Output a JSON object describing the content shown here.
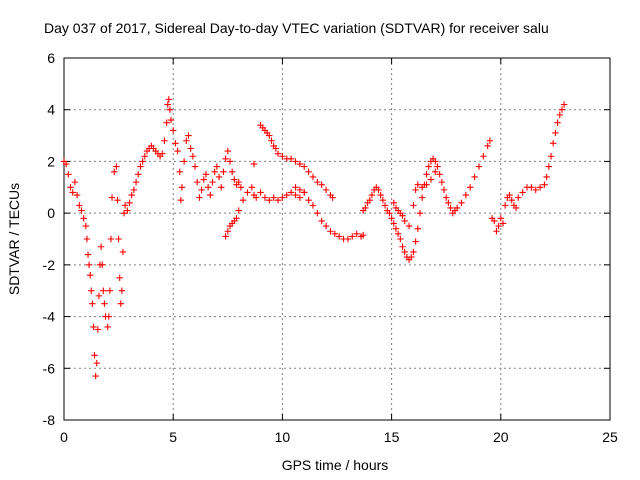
{
  "chart_data": {
    "type": "scatter",
    "title": "Day 037 of 2017, Sidereal Day-to-day VTEC variation (SDTVAR) for receiver salu",
    "xlabel": "GPS time / hours",
    "ylabel": "SDTVAR / TECUs",
    "xlim": [
      0,
      25
    ],
    "ylim": [
      -8,
      6
    ],
    "xticks": [
      0,
      5,
      10,
      15,
      20,
      25
    ],
    "yticks": [
      -8,
      -6,
      -4,
      -2,
      0,
      2,
      4,
      6
    ],
    "grid": true,
    "marker": "plus",
    "color": "#ff0000",
    "series": [
      {
        "name": "SDTVAR",
        "points": [
          [
            0.0,
            2.0
          ],
          [
            0.1,
            1.9
          ],
          [
            0.2,
            1.5
          ],
          [
            0.3,
            1.0
          ],
          [
            0.4,
            0.8
          ],
          [
            0.5,
            1.2
          ],
          [
            0.6,
            0.7
          ],
          [
            0.7,
            0.3
          ],
          [
            0.8,
            0.1
          ],
          [
            0.9,
            -0.2
          ],
          [
            1.0,
            -0.5
          ],
          [
            1.05,
            -1.0
          ],
          [
            1.1,
            -1.6
          ],
          [
            1.15,
            -2.0
          ],
          [
            1.2,
            -2.4
          ],
          [
            1.25,
            -3.0
          ],
          [
            1.3,
            -3.5
          ],
          [
            1.35,
            -4.4
          ],
          [
            1.4,
            -5.5
          ],
          [
            1.45,
            -6.3
          ],
          [
            1.5,
            -5.8
          ],
          [
            1.55,
            -4.5
          ],
          [
            1.6,
            -3.2
          ],
          [
            1.65,
            -2.0
          ],
          [
            1.7,
            -1.3
          ],
          [
            1.75,
            -2.0
          ],
          [
            1.8,
            -3.0
          ],
          [
            1.85,
            -3.5
          ],
          [
            1.9,
            -4.0
          ],
          [
            2.0,
            -4.4
          ],
          [
            2.05,
            -4.0
          ],
          [
            2.1,
            -3.0
          ],
          [
            2.15,
            -1.0
          ],
          [
            2.2,
            0.6
          ],
          [
            2.3,
            1.6
          ],
          [
            2.4,
            1.8
          ],
          [
            2.45,
            0.5
          ],
          [
            2.5,
            -1.0
          ],
          [
            2.55,
            -2.5
          ],
          [
            2.6,
            -3.5
          ],
          [
            2.65,
            -3.0
          ],
          [
            2.7,
            -1.5
          ],
          [
            2.75,
            0.0
          ],
          [
            2.8,
            0.3
          ],
          [
            2.9,
            0.1
          ],
          [
            3.0,
            0.4
          ],
          [
            3.1,
            0.7
          ],
          [
            3.2,
            0.9
          ],
          [
            3.3,
            1.2
          ],
          [
            3.4,
            1.5
          ],
          [
            3.5,
            1.8
          ],
          [
            3.6,
            2.0
          ],
          [
            3.7,
            2.2
          ],
          [
            3.8,
            2.4
          ],
          [
            3.9,
            2.5
          ],
          [
            4.0,
            2.6
          ],
          [
            4.1,
            2.5
          ],
          [
            4.2,
            2.4
          ],
          [
            4.3,
            2.3
          ],
          [
            4.4,
            2.2
          ],
          [
            4.5,
            2.3
          ],
          [
            4.6,
            2.8
          ],
          [
            4.7,
            3.5
          ],
          [
            4.75,
            4.2
          ],
          [
            4.8,
            4.4
          ],
          [
            4.85,
            4.0
          ],
          [
            4.9,
            3.6
          ],
          [
            5.0,
            3.2
          ],
          [
            5.1,
            2.7
          ],
          [
            5.2,
            2.4
          ],
          [
            5.3,
            1.6
          ],
          [
            5.35,
            0.5
          ],
          [
            5.4,
            1.0
          ],
          [
            5.5,
            2.0
          ],
          [
            5.6,
            2.8
          ],
          [
            5.7,
            3.0
          ],
          [
            5.8,
            2.5
          ],
          [
            5.9,
            2.2
          ],
          [
            6.0,
            1.8
          ],
          [
            6.1,
            1.2
          ],
          [
            6.2,
            0.6
          ],
          [
            6.3,
            0.9
          ],
          [
            6.4,
            1.3
          ],
          [
            6.5,
            1.5
          ],
          [
            6.6,
            1.0
          ],
          [
            6.7,
            0.7
          ],
          [
            6.8,
            1.2
          ],
          [
            6.9,
            1.6
          ],
          [
            7.0,
            1.8
          ],
          [
            7.1,
            1.4
          ],
          [
            7.2,
            1.0
          ],
          [
            7.3,
            1.6
          ],
          [
            7.4,
            2.1
          ],
          [
            7.5,
            2.4
          ],
          [
            7.6,
            2.0
          ],
          [
            7.7,
            1.6
          ],
          [
            7.8,
            1.3
          ],
          [
            7.9,
            1.1
          ],
          [
            8.0,
            1.2
          ],
          [
            8.1,
            1.0
          ],
          [
            7.4,
            -0.9
          ],
          [
            7.5,
            -0.7
          ],
          [
            7.6,
            -0.5
          ],
          [
            7.7,
            -0.4
          ],
          [
            7.8,
            -0.3
          ],
          [
            7.9,
            -0.2
          ],
          [
            8.0,
            0.1
          ],
          [
            8.2,
            0.5
          ],
          [
            8.4,
            0.8
          ],
          [
            8.6,
            1.0
          ],
          [
            8.7,
            0.7
          ],
          [
            8.8,
            0.6
          ],
          [
            9.0,
            0.8
          ],
          [
            9.2,
            0.6
          ],
          [
            9.4,
            0.5
          ],
          [
            9.6,
            0.6
          ],
          [
            9.8,
            0.5
          ],
          [
            10.0,
            0.6
          ],
          [
            10.2,
            0.7
          ],
          [
            10.4,
            0.8
          ],
          [
            10.6,
            0.7
          ],
          [
            10.8,
            0.6
          ],
          [
            11.0,
            0.8
          ],
          [
            11.2,
            0.5
          ],
          [
            11.4,
            0.3
          ],
          [
            11.6,
            0.0
          ],
          [
            11.8,
            -0.3
          ],
          [
            12.0,
            -0.5
          ],
          [
            12.2,
            -0.7
          ],
          [
            12.4,
            -0.8
          ],
          [
            12.6,
            -0.9
          ],
          [
            12.8,
            -1.0
          ],
          [
            13.0,
            -1.0
          ],
          [
            13.2,
            -0.9
          ],
          [
            13.4,
            -0.8
          ],
          [
            13.6,
            -0.9
          ],
          [
            13.7,
            -0.85
          ],
          [
            8.7,
            1.9
          ],
          [
            9.0,
            3.4
          ],
          [
            9.1,
            3.3
          ],
          [
            9.2,
            3.2
          ],
          [
            9.3,
            3.1
          ],
          [
            9.4,
            3.0
          ],
          [
            9.5,
            2.8
          ],
          [
            9.6,
            2.6
          ],
          [
            9.7,
            2.5
          ],
          [
            9.8,
            2.3
          ],
          [
            10.0,
            2.2
          ],
          [
            10.2,
            2.1
          ],
          [
            10.4,
            2.1
          ],
          [
            10.6,
            2.0
          ],
          [
            10.8,
            1.9
          ],
          [
            11.0,
            1.8
          ],
          [
            11.2,
            1.6
          ],
          [
            11.4,
            1.4
          ],
          [
            11.6,
            1.2
          ],
          [
            11.8,
            1.1
          ],
          [
            12.0,
            0.9
          ],
          [
            12.2,
            0.7
          ],
          [
            12.3,
            0.6
          ],
          [
            10.6,
            1.0
          ],
          [
            10.8,
            0.9
          ],
          [
            11.0,
            0.8
          ],
          [
            13.7,
            0.1
          ],
          [
            13.8,
            0.2
          ],
          [
            13.9,
            0.4
          ],
          [
            14.0,
            0.5
          ],
          [
            14.1,
            0.7
          ],
          [
            14.2,
            0.9
          ],
          [
            14.3,
            1.0
          ],
          [
            14.4,
            0.9
          ],
          [
            14.5,
            0.7
          ],
          [
            14.6,
            0.5
          ],
          [
            14.7,
            0.3
          ],
          [
            14.8,
            0.1
          ],
          [
            14.9,
            0.0
          ],
          [
            15.0,
            -0.2
          ],
          [
            15.1,
            -0.4
          ],
          [
            15.2,
            -0.6
          ],
          [
            15.3,
            -0.8
          ],
          [
            15.4,
            -1.0
          ],
          [
            15.5,
            -1.3
          ],
          [
            15.6,
            -1.5
          ],
          [
            15.7,
            -1.7
          ],
          [
            15.8,
            -1.8
          ],
          [
            15.9,
            -1.7
          ],
          [
            16.0,
            -1.5
          ],
          [
            16.1,
            -1.1
          ],
          [
            16.2,
            -0.6
          ],
          [
            16.3,
            0.0
          ],
          [
            16.4,
            0.6
          ],
          [
            16.5,
            1.1
          ],
          [
            16.6,
            1.5
          ],
          [
            16.7,
            1.8
          ],
          [
            16.8,
            2.0
          ],
          [
            16.9,
            2.1
          ],
          [
            17.0,
            2.0
          ],
          [
            17.1,
            1.8
          ],
          [
            17.2,
            1.5
          ],
          [
            17.3,
            1.2
          ],
          [
            17.4,
            0.9
          ],
          [
            17.5,
            0.6
          ],
          [
            17.6,
            0.4
          ],
          [
            17.7,
            0.2
          ],
          [
            17.8,
            0.0
          ],
          [
            17.9,
            0.1
          ],
          [
            18.0,
            0.2
          ],
          [
            18.2,
            0.4
          ],
          [
            18.4,
            0.7
          ],
          [
            18.6,
            1.0
          ],
          [
            18.8,
            1.4
          ],
          [
            19.0,
            1.8
          ],
          [
            19.2,
            2.2
          ],
          [
            19.4,
            2.6
          ],
          [
            19.5,
            2.8
          ],
          [
            15.1,
            0.4
          ],
          [
            15.2,
            0.2
          ],
          [
            15.3,
            0.1
          ],
          [
            15.4,
            0.0
          ],
          [
            15.5,
            -0.1
          ],
          [
            15.6,
            -0.3
          ],
          [
            15.8,
            -0.5
          ],
          [
            16.0,
            0.3
          ],
          [
            16.1,
            0.9
          ],
          [
            16.2,
            1.1
          ],
          [
            16.4,
            1.0
          ],
          [
            16.6,
            1.1
          ],
          [
            16.8,
            1.3
          ],
          [
            17.0,
            1.6
          ],
          [
            19.6,
            -0.2
          ],
          [
            19.7,
            -0.3
          ],
          [
            19.8,
            -0.7
          ],
          [
            19.9,
            -0.5
          ],
          [
            20.0,
            -0.2
          ],
          [
            20.1,
            -0.4
          ],
          [
            20.2,
            0.3
          ],
          [
            20.3,
            0.6
          ],
          [
            20.4,
            0.7
          ],
          [
            20.5,
            0.5
          ],
          [
            20.6,
            0.3
          ],
          [
            20.7,
            0.2
          ],
          [
            20.8,
            0.6
          ],
          [
            21.0,
            0.8
          ],
          [
            21.2,
            1.0
          ],
          [
            21.4,
            1.0
          ],
          [
            21.6,
            0.9
          ],
          [
            21.8,
            1.0
          ],
          [
            22.0,
            1.1
          ],
          [
            22.1,
            1.4
          ],
          [
            22.2,
            1.8
          ],
          [
            22.3,
            2.2
          ],
          [
            22.4,
            2.7
          ],
          [
            22.5,
            3.1
          ],
          [
            22.6,
            3.5
          ],
          [
            22.7,
            3.8
          ],
          [
            22.8,
            4.0
          ],
          [
            22.9,
            4.2
          ]
        ]
      }
    ]
  }
}
